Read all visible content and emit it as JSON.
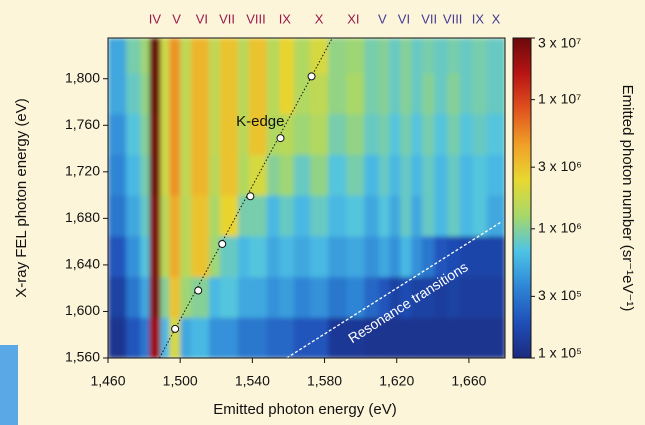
{
  "chart_data": {
    "type": "heatmap",
    "xlabel": "Emitted photon energy (eV)",
    "ylabel": "X-ray FEL photon energy (eV)",
    "xlim": [
      1460,
      1680
    ],
    "ylim": [
      1560,
      1835
    ],
    "xticks": [
      {
        "value": 1460,
        "label": "1,460"
      },
      {
        "value": 1500,
        "label": "1,500"
      },
      {
        "value": 1540,
        "label": "1,540"
      },
      {
        "value": 1580,
        "label": "1,580"
      },
      {
        "value": 1620,
        "label": "1,620"
      },
      {
        "value": 1660,
        "label": "1,660"
      }
    ],
    "yticks": [
      {
        "value": 1560,
        "label": "1,560"
      },
      {
        "value": 1600,
        "label": "1,600"
      },
      {
        "value": 1640,
        "label": "1,640"
      },
      {
        "value": 1680,
        "label": "1,680"
      },
      {
        "value": 1720,
        "label": "1,720"
      },
      {
        "value": 1760,
        "label": "1,760"
      },
      {
        "value": 1800,
        "label": "1,800"
      }
    ],
    "x_edges": [
      1460,
      1470,
      1478,
      1483,
      1489,
      1494,
      1500,
      1506,
      1516,
      1522,
      1532,
      1538,
      1548,
      1555,
      1563,
      1572,
      1582,
      1592,
      1602,
      1610,
      1616,
      1622,
      1628,
      1634,
      1641,
      1648,
      1655,
      1662,
      1670,
      1680
    ],
    "y_edges": [
      1560,
      1595,
      1630,
      1665,
      1700,
      1735,
      1770,
      1805,
      1835
    ],
    "z": [
      [
        120000.0,
        200000.0,
        300000.0,
        20000000.0,
        600000.0,
        2000000.0,
        500000.0,
        600000.0,
        400000.0,
        400000.0,
        300000.0,
        300000.0,
        250000.0,
        250000.0,
        200000.0,
        200000.0,
        130000.0,
        130000.0,
        120000.0,
        120000.0,
        120000.0,
        120000.0,
        120000.0,
        120000.0,
        120000.0,
        120000.0,
        120000.0,
        120000.0,
        120000.0
      ],
      [
        150000.0,
        300000.0,
        500000.0,
        25000000.0,
        1000000.0,
        3000000.0,
        1200000.0,
        1000000.0,
        600000.0,
        700000.0,
        500000.0,
        500000.0,
        400000.0,
        450000.0,
        350000.0,
        400000.0,
        300000.0,
        350000.0,
        250000.0,
        200000.0,
        150000.0,
        180000.0,
        150000.0,
        150000.0,
        140000.0,
        150000.0,
        140000.0,
        140000.0,
        140000.0
      ],
      [
        200000.0,
        400000.0,
        700000.0,
        25000000.0,
        1500000.0,
        4000000.0,
        1500000.0,
        3000000.0,
        1200000.0,
        800000.0,
        600000.0,
        700000.0,
        500000.0,
        600000.0,
        500000.0,
        600000.0,
        450000.0,
        500000.0,
        400000.0,
        500000.0,
        400000.0,
        600000.0,
        400000.0,
        300000.0,
        200000.0,
        180000.0,
        160000.0,
        160000.0,
        160000.0
      ],
      [
        300000.0,
        500000.0,
        800000.0,
        25000000.0,
        1500000.0,
        4000000.0,
        1500000.0,
        3000000.0,
        1300000.0,
        2500000.0,
        900000.0,
        900000.0,
        600000.0,
        800000.0,
        600000.0,
        800000.0,
        600000.0,
        700000.0,
        500000.0,
        700000.0,
        500000.0,
        800000.0,
        500000.0,
        800000.0,
        600000.0,
        800000.0,
        600000.0,
        700000.0,
        500000.0
      ],
      [
        350000.0,
        600000.0,
        900000.0,
        28000000.0,
        1800000.0,
        5000000.0,
        1600000.0,
        3500000.0,
        1500000.0,
        3000000.0,
        1400000.0,
        2000000.0,
        1000000.0,
        1200000.0,
        800000.0,
        1100000.0,
        700000.0,
        900000.0,
        600000.0,
        800000.0,
        600000.0,
        800000.0,
        600000.0,
        800000.0,
        600000.0,
        800000.0,
        600000.0,
        700000.0,
        600000.0
      ],
      [
        400000.0,
        700000.0,
        1000000.0,
        28000000.0,
        1800000.0,
        5000000.0,
        1600000.0,
        3500000.0,
        1600000.0,
        3000000.0,
        1500000.0,
        3000000.0,
        1400000.0,
        1500000.0,
        1200000.0,
        1400000.0,
        900000.0,
        1100000.0,
        800000.0,
        900000.0,
        700000.0,
        900000.0,
        700000.0,
        900000.0,
        700000.0,
        900000.0,
        700000.0,
        800000.0,
        700000.0
      ],
      [
        500000.0,
        800000.0,
        1100000.0,
        30000000.0,
        1800000.0,
        5000000.0,
        1600000.0,
        3500000.0,
        1600000.0,
        3000000.0,
        1500000.0,
        3000000.0,
        1500000.0,
        2500000.0,
        1400000.0,
        1600000.0,
        1100000.0,
        1300000.0,
        900000.0,
        1000000.0,
        800000.0,
        1000000.0,
        800000.0,
        1000000.0,
        800000.0,
        1000000.0,
        800000.0,
        900000.0,
        800000.0
      ],
      [
        500000.0,
        900000.0,
        1200000.0,
        30000000.0,
        1800000.0,
        5000000.0,
        1600000.0,
        3500000.0,
        1600000.0,
        3000000.0,
        1500000.0,
        3000000.0,
        1500000.0,
        2500000.0,
        1400000.0,
        2000000.0,
        1100000.0,
        1200000.0,
        900000.0,
        1000000.0,
        800000.0,
        1000000.0,
        800000.0,
        900000.0,
        800000.0,
        900000.0,
        800000.0,
        900000.0,
        800000.0
      ]
    ],
    "colorbar": {
      "label": "Emitted photon number (sr⁻¹eV⁻¹)",
      "scale": "log",
      "lim": [
        100000.0,
        30000000.0
      ],
      "ticks": [
        {
          "value": 30000000.0,
          "label": "3 x 10⁷"
        },
        {
          "value": 10000000.0,
          "label": "1 x 10⁷"
        },
        {
          "value": 3000000.0,
          "label": "3 x 10⁶"
        },
        {
          "value": 1000000.0,
          "label": "1 x 10⁶"
        },
        {
          "value": 300000.0,
          "label": "3 x 10⁵"
        },
        {
          "value": 100000.0,
          "label": "1 x 10⁵"
        }
      ],
      "colormap": [
        "#1c2a7e",
        "#1f4fb8",
        "#2e86d6",
        "#4ec3e6",
        "#a6d86a",
        "#e8d830",
        "#f0a028",
        "#e0521e",
        "#b81414",
        "#6a0a0a"
      ]
    },
    "k_edge": {
      "label": "K-edge",
      "x": [
        1497.2,
        1510,
        1523.3,
        1538.9,
        1555.6,
        1572.8
      ],
      "y": [
        1585,
        1618,
        1658,
        1699,
        1749,
        1802
      ]
    },
    "resonance": {
      "label": "Resonance transitions",
      "x": [
        1559,
        1678
      ],
      "y": [
        1560,
        1677
      ]
    },
    "transition_labels": [
      {
        "color": "#9a1a4c",
        "labels": [
          "IV",
          "V",
          "VI",
          "VII",
          "VIII",
          "IX",
          "X",
          "XI"
        ],
        "x": [
          1486,
          1498,
          1512,
          1526,
          1542,
          1558,
          1577,
          1596
        ]
      },
      {
        "color": "#433d96",
        "labels": [
          "V",
          "VI",
          "VII",
          "VIII",
          "IX",
          "X"
        ],
        "x": [
          1612,
          1624,
          1638,
          1651,
          1665,
          1675
        ]
      }
    ]
  }
}
